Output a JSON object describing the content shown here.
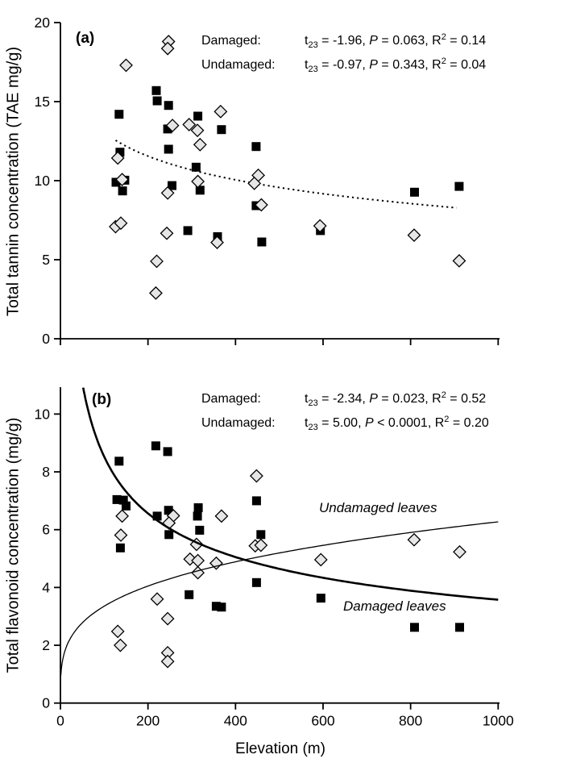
{
  "figure": {
    "panel_a_label": "(a)",
    "panel_b_label": "(b)",
    "x_axis_title": "Elevation (m)"
  },
  "chart_data": [
    {
      "panel": "a",
      "type": "scatter",
      "panel_label": "(a)",
      "ylabel": "Total tannin concentration (TAE mg/g)",
      "xlabel": "",
      "xlim": [
        0,
        1000
      ],
      "ylim": [
        0,
        20
      ],
      "xticks": [
        0,
        200,
        400,
        600,
        800,
        1000
      ],
      "xtick_labels_shown": false,
      "yticks": [
        0,
        5,
        10,
        15,
        20
      ],
      "grid": false,
      "curves_on_top": false,
      "stats_annotations": [
        {
          "group": "Damaged:",
          "t_name": "t",
          "t_sub": "23",
          "t_rest": " = -1.96, ",
          "p_name": "P",
          "p_rest": " = 0.063, ",
          "r_name": "R",
          "r_sup": "2",
          "r_rest": " = 0.14"
        },
        {
          "group": "Undamaged:",
          "t_name": "t",
          "t_sub": "23",
          "t_rest": " = -0.97, ",
          "p_name": "P",
          "p_rest": " = 0.343, ",
          "r_name": "R",
          "r_sup": "2",
          "r_rest": " = 0.04"
        }
      ],
      "series": [
        {
          "name": "Damaged",
          "marker": "filled-square",
          "fill": "#000000",
          "points": [
            [
              134,
              14.2
            ],
            [
              219,
              15.7
            ],
            [
              221,
              15.05
            ],
            [
              247,
              14.76
            ],
            [
              314,
              14.08
            ],
            [
              245,
              13.27
            ],
            [
              368,
              13.23
            ],
            [
              447,
              12.16
            ],
            [
              247,
              11.99
            ],
            [
              136,
              11.8
            ],
            [
              310,
              10.85
            ],
            [
              127,
              9.9
            ],
            [
              147,
              10.03
            ],
            [
              142,
              9.35
            ],
            [
              255,
              9.69
            ],
            [
              319,
              9.4
            ],
            [
              447,
              8.42
            ],
            [
              291,
              6.84
            ],
            [
              359,
              6.46
            ],
            [
              460,
              6.12
            ],
            [
              594,
              6.84
            ],
            [
              809,
              9.27
            ],
            [
              911,
              9.64
            ]
          ]
        },
        {
          "name": "Undamaged",
          "marker": "open-diamond",
          "fill": "#e6e6e6",
          "points": [
            [
              247,
              18.8
            ],
            [
              245,
              18.36
            ],
            [
              150,
              17.3
            ],
            [
              366,
              14.37
            ],
            [
              294,
              13.55
            ],
            [
              256,
              13.49
            ],
            [
              313,
              13.18
            ],
            [
              319,
              12.28
            ],
            [
              131,
              11.43
            ],
            [
              452,
              10.34
            ],
            [
              443,
              9.83
            ],
            [
              141,
              10.07
            ],
            [
              314,
              9.95
            ],
            [
              245,
              9.22
            ],
            [
              126,
              7.09
            ],
            [
              138,
              7.31
            ],
            [
              243,
              6.67
            ],
            [
              358,
              6.09
            ],
            [
              220,
              4.9
            ],
            [
              218,
              2.89
            ],
            [
              459,
              8.47
            ],
            [
              593,
              7.14
            ],
            [
              808,
              6.55
            ],
            [
              911,
              4.93
            ]
          ]
        }
      ],
      "trend_lines": [
        {
          "for": "Damaged",
          "style": "dotted",
          "form": "log",
          "a": 23.03,
          "b": -2.166,
          "x_from": 126,
          "x_to": 905,
          "stroke_width": 2
        }
      ],
      "annotations": []
    },
    {
      "panel": "b",
      "type": "scatter",
      "panel_label": "(b)",
      "ylabel": "Total flavonoid concentration (mg/g)",
      "xlabel": "Elevation (m)",
      "xlim": [
        0,
        1000
      ],
      "ylim": [
        0,
        11
      ],
      "xticks": [
        0,
        200,
        400,
        600,
        800,
        1000
      ],
      "xtick_labels_shown": true,
      "yticks": [
        0,
        2,
        4,
        6,
        8,
        10
      ],
      "grid": false,
      "curves_on_top": true,
      "stats_annotations": [
        {
          "group": "Damaged:",
          "t_name": "t",
          "t_sub": "23",
          "t_rest": " = -2.34, ",
          "p_name": "P",
          "p_rest": " = 0.023, ",
          "r_name": "R",
          "r_sup": "2",
          "r_rest": " = 0.52"
        },
        {
          "group": "Undamaged:",
          "t_name": "t",
          "t_sub": "23",
          "t_rest": " = 5.00, ",
          "p_name": "P",
          "p_rest": " < 0.0001, ",
          "r_name": "R",
          "r_sup": "2",
          "r_rest": " = 0.20"
        }
      ],
      "series": [
        {
          "name": "Damaged",
          "marker": "filled-square",
          "fill": "#000000",
          "points": [
            [
              218,
              8.9
            ],
            [
              245,
              8.7
            ],
            [
              134,
              8.37
            ],
            [
              129,
              7.04
            ],
            [
              144,
              7.02
            ],
            [
              150,
              6.82
            ],
            [
              221,
              6.47
            ],
            [
              247,
              6.67
            ],
            [
              315,
              6.76
            ],
            [
              313,
              6.47
            ],
            [
              318,
              5.98
            ],
            [
              448,
              7.0
            ],
            [
              137,
              5.37
            ],
            [
              248,
              5.83
            ],
            [
              458,
              5.83
            ],
            [
              448,
              4.17
            ],
            [
              294,
              3.75
            ],
            [
              356,
              3.35
            ],
            [
              368,
              3.32
            ],
            [
              595,
              3.63
            ],
            [
              809,
              2.62
            ],
            [
              912,
              2.62
            ]
          ]
        },
        {
          "name": "Undamaged",
          "marker": "open-diamond",
          "fill": "#e6e6e6",
          "points": [
            [
              141,
              6.47
            ],
            [
              258,
              6.48
            ],
            [
              248,
              6.23
            ],
            [
              368,
              6.47
            ],
            [
              448,
              7.86
            ],
            [
              138,
              5.81
            ],
            [
              311,
              5.49
            ],
            [
              296,
              4.98
            ],
            [
              314,
              4.93
            ],
            [
              314,
              4.51
            ],
            [
              356,
              4.84
            ],
            [
              445,
              5.44
            ],
            [
              458,
              5.46
            ],
            [
              221,
              3.6
            ],
            [
              245,
              2.92
            ],
            [
              131,
              2.48
            ],
            [
              137,
              2.0
            ],
            [
              245,
              1.74
            ],
            [
              245,
              1.44
            ],
            [
              595,
              4.96
            ],
            [
              808,
              5.65
            ],
            [
              912,
              5.23
            ]
          ]
        }
      ],
      "trend_lines": [
        {
          "for": "Damaged",
          "style": "solid",
          "form": "power",
          "a": 48.5,
          "b": -0.3775,
          "x_from": 52,
          "x_to": 1000,
          "stroke_width": 2.6
        },
        {
          "for": "Undamaged",
          "style": "solid",
          "form": "power",
          "a": 0.958,
          "b": 0.272,
          "x_from": 1,
          "x_to": 1000,
          "stroke_width": 1.3
        }
      ],
      "annotations": [
        {
          "text": "Undamaged leaves"
        },
        {
          "text": "Damaged leaves"
        }
      ]
    }
  ]
}
